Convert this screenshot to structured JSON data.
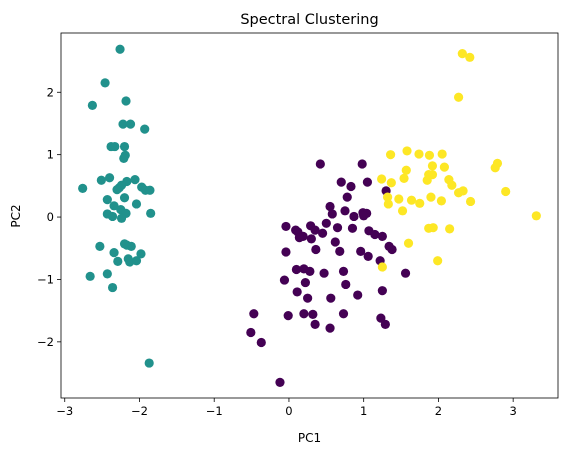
{
  "chart_data": {
    "type": "scatter",
    "title": "Spectral Clustering",
    "xlabel": "PC1",
    "ylabel": "PC2",
    "xlim": [
      -3.05,
      3.6
    ],
    "ylim": [
      -2.9,
      2.95
    ],
    "xticks": [
      -3,
      -2,
      -1,
      0,
      1,
      2,
      3
    ],
    "yticks": [
      -2,
      -1,
      0,
      1,
      2
    ],
    "xtick_labels": [
      "−3",
      "−2",
      "−1",
      "0",
      "1",
      "2",
      "3"
    ],
    "ytick_labels": [
      "−2",
      "−1",
      "0",
      "1",
      "2"
    ],
    "grid": false,
    "legend": "none",
    "colors": {
      "cluster_0": "#440154",
      "cluster_1": "#21918c",
      "cluster_2": "#fde725"
    },
    "series": [
      {
        "color_key": "cluster_1",
        "points": [
          [
            -2.26,
            2.69
          ],
          [
            -2.46,
            2.15
          ],
          [
            -2.63,
            1.79
          ],
          [
            -2.18,
            1.86
          ],
          [
            -2.22,
            1.49
          ],
          [
            -2.12,
            1.49
          ],
          [
            -1.93,
            1.41
          ],
          [
            -2.33,
            1.13
          ],
          [
            -2.38,
            1.13
          ],
          [
            -2.2,
            1.13
          ],
          [
            -2.19,
            0.99
          ],
          [
            -2.21,
            0.94
          ],
          [
            -2.51,
            0.59
          ],
          [
            -2.4,
            0.63
          ],
          [
            -2.17,
            0.57
          ],
          [
            -2.06,
            0.6
          ],
          [
            -2.76,
            0.46
          ],
          [
            -2.27,
            0.47
          ],
          [
            -2.24,
            0.51
          ],
          [
            -2.3,
            0.44
          ],
          [
            -1.97,
            0.48
          ],
          [
            -1.92,
            0.43
          ],
          [
            -1.86,
            0.43
          ],
          [
            -2.43,
            0.28
          ],
          [
            -2.2,
            0.31
          ],
          [
            -2.34,
            0.18
          ],
          [
            -2.04,
            0.21
          ],
          [
            -2.25,
            0.12
          ],
          [
            -2.43,
            0.05
          ],
          [
            -2.18,
            0.06
          ],
          [
            -2.36,
            0.01
          ],
          [
            -2.24,
            -0.02
          ],
          [
            -1.85,
            0.06
          ],
          [
            -2.53,
            -0.47
          ],
          [
            -2.17,
            -0.45
          ],
          [
            -2.11,
            -0.47
          ],
          [
            -2.2,
            -0.43
          ],
          [
            -2.34,
            -0.57
          ],
          [
            -1.98,
            -0.59
          ],
          [
            -2.29,
            -0.71
          ],
          [
            -2.15,
            -0.67
          ],
          [
            -2.13,
            -0.72
          ],
          [
            -2.04,
            -0.7
          ],
          [
            -2.66,
            -0.95
          ],
          [
            -2.43,
            -0.91
          ],
          [
            -2.36,
            -1.13
          ],
          [
            -1.87,
            -2.34
          ]
        ]
      },
      {
        "color_key": "cluster_0",
        "points": [
          [
            0.42,
            0.85
          ],
          [
            0.98,
            0.85
          ],
          [
            0.7,
            0.56
          ],
          [
            0.83,
            0.49
          ],
          [
            0.78,
            0.32
          ],
          [
            1.05,
            0.56
          ],
          [
            1.3,
            0.42
          ],
          [
            0.55,
            0.17
          ],
          [
            0.58,
            0.05
          ],
          [
            0.75,
            0.1
          ],
          [
            0.99,
            0.07
          ],
          [
            1.04,
            0.06
          ],
          [
            0.87,
            0.01
          ],
          [
            1.0,
            0.02
          ],
          [
            -0.04,
            -0.15
          ],
          [
            0.12,
            -0.24
          ],
          [
            0.09,
            -0.21
          ],
          [
            0.29,
            -0.14
          ],
          [
            0.19,
            -0.31
          ],
          [
            0.5,
            -0.1
          ],
          [
            0.35,
            -0.21
          ],
          [
            0.45,
            -0.26
          ],
          [
            0.65,
            -0.17
          ],
          [
            0.85,
            -0.18
          ],
          [
            1.07,
            -0.22
          ],
          [
            1.15,
            -0.28
          ],
          [
            1.25,
            -0.31
          ],
          [
            0.14,
            -0.33
          ],
          [
            0.3,
            -0.35
          ],
          [
            0.62,
            -0.4
          ],
          [
            0.96,
            -0.55
          ],
          [
            1.34,
            -0.47
          ],
          [
            1.38,
            -0.52
          ],
          [
            -0.04,
            -0.56
          ],
          [
            0.36,
            -0.52
          ],
          [
            0.68,
            -0.55
          ],
          [
            1.06,
            -0.63
          ],
          [
            1.22,
            -0.7
          ],
          [
            0.1,
            -0.84
          ],
          [
            0.2,
            -0.83
          ],
          [
            0.28,
            -0.87
          ],
          [
            0.47,
            -0.9
          ],
          [
            0.73,
            -0.87
          ],
          [
            1.56,
            -0.9
          ],
          [
            -0.06,
            -1.01
          ],
          [
            0.22,
            -1.05
          ],
          [
            0.76,
            -1.08
          ],
          [
            1.25,
            -1.18
          ],
          [
            0.11,
            -1.2
          ],
          [
            0.25,
            -1.3
          ],
          [
            0.56,
            -1.3
          ],
          [
            0.92,
            -1.25
          ],
          [
            0.2,
            -1.55
          ],
          [
            0.32,
            -1.56
          ],
          [
            0.73,
            -1.55
          ],
          [
            -0.01,
            -1.58
          ],
          [
            1.23,
            -1.62
          ],
          [
            1.29,
            -1.72
          ],
          [
            0.35,
            -1.72
          ],
          [
            0.55,
            -1.78
          ],
          [
            -0.47,
            -1.55
          ],
          [
            -0.51,
            -1.85
          ],
          [
            -0.37,
            -2.01
          ],
          [
            -0.12,
            -2.65
          ]
        ]
      },
      {
        "color_key": "cluster_2",
        "points": [
          [
            2.32,
            2.62
          ],
          [
            2.42,
            2.56
          ],
          [
            2.27,
            1.92
          ],
          [
            1.58,
            1.06
          ],
          [
            1.74,
            1.01
          ],
          [
            1.36,
            1.0
          ],
          [
            1.88,
            0.99
          ],
          [
            2.05,
            1.01
          ],
          [
            1.92,
            0.82
          ],
          [
            2.08,
            0.8
          ],
          [
            2.79,
            0.86
          ],
          [
            2.76,
            0.79
          ],
          [
            1.57,
            0.75
          ],
          [
            1.24,
            0.61
          ],
          [
            1.54,
            0.62
          ],
          [
            1.87,
            0.68
          ],
          [
            1.92,
            0.68
          ],
          [
            1.85,
            0.59
          ],
          [
            2.14,
            0.6
          ],
          [
            1.37,
            0.55
          ],
          [
            2.18,
            0.51
          ],
          [
            1.32,
            0.32
          ],
          [
            1.64,
            0.27
          ],
          [
            1.9,
            0.32
          ],
          [
            2.27,
            0.39
          ],
          [
            2.33,
            0.42
          ],
          [
            2.9,
            0.41
          ],
          [
            1.75,
            0.22
          ],
          [
            2.04,
            0.26
          ],
          [
            2.43,
            0.25
          ],
          [
            1.47,
            0.29
          ],
          [
            1.33,
            0.21
          ],
          [
            1.52,
            0.1
          ],
          [
            3.31,
            0.02
          ],
          [
            1.87,
            -0.18
          ],
          [
            1.93,
            -0.17
          ],
          [
            2.15,
            -0.19
          ],
          [
            1.6,
            -0.42
          ],
          [
            1.25,
            -0.8
          ],
          [
            1.99,
            -0.7
          ]
        ]
      }
    ]
  }
}
